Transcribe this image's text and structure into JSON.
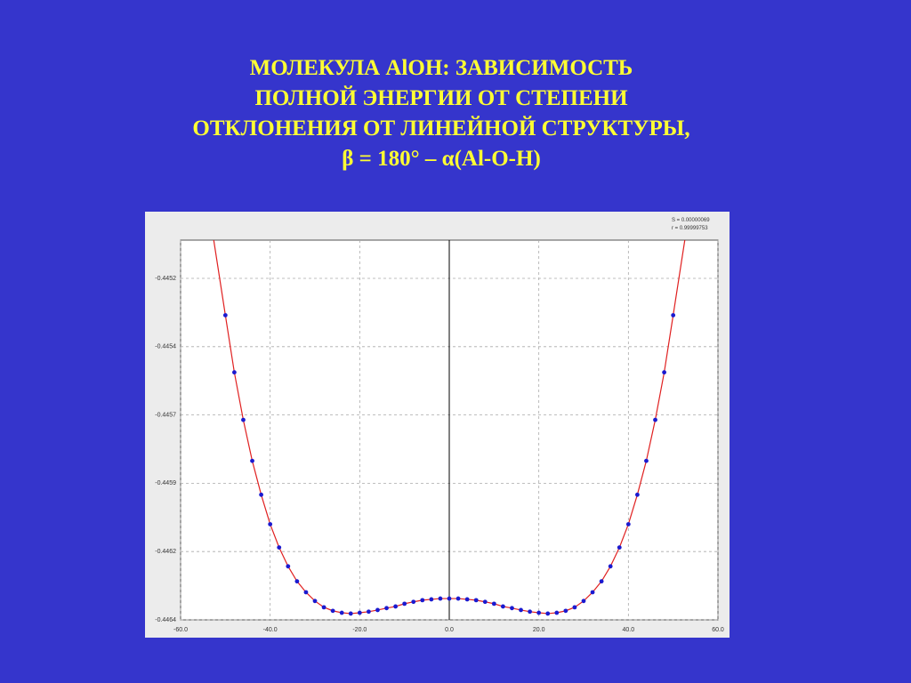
{
  "chart_data": {
    "type": "scatter",
    "title_lines": [
      "МОЛЕКУЛА AlOH: ЗАВИСИМОСТЬ",
      "ПОЛНОЙ ЭНЕРГИИ ОТ СТЕПЕНИ",
      "ОТКЛОНЕНИЯ ОТ ЛИНЕЙНОЙ СТРУКТУРЫ,",
      "β = 180° – α(Al-O-H)"
    ],
    "annotations": [
      "S = 0.00000069",
      "r = 0.99999753"
    ],
    "xlim": [
      -60,
      60
    ],
    "xticks": [
      {
        "value": -60,
        "label": "-60.0"
      },
      {
        "value": -40,
        "label": "-40.0"
      },
      {
        "value": -20,
        "label": "-20.0"
      },
      {
        "value": 0,
        "label": "0.0"
      },
      {
        "value": 20,
        "label": "20.0"
      },
      {
        "value": 40,
        "label": "40.0"
      },
      {
        "value": 60,
        "label": "60.0"
      }
    ],
    "ylim": [
      -0.4464,
      -0.44501
    ],
    "yticks": [
      {
        "value": -0.44515,
        "label": "-0.4452"
      },
      {
        "value": -0.4454,
        "label": "-0.4454"
      },
      {
        "value": -0.44565,
        "label": "-0.4457"
      },
      {
        "value": -0.4459,
        "label": "-0.4459"
      },
      {
        "value": -0.44615,
        "label": "-0.4462"
      },
      {
        "value": -0.4464,
        "label": "-0.4464"
      }
    ],
    "grid": true,
    "series": [
      {
        "color": "#1a1ad0",
        "marker": "circle",
        "x": [
          -50,
          -48,
          -46,
          -44,
          -42,
          -40,
          -38,
          -36,
          -34,
          -32,
          -30,
          -28,
          -26,
          -24,
          -22,
          -20,
          -18,
          -16,
          -14,
          -12,
          -10,
          -8,
          -6,
          -4,
          -2,
          0,
          2,
          4,
          6,
          8,
          10,
          12,
          14,
          16,
          18,
          20,
          22,
          24,
          26,
          28,
          30,
          32,
          34,
          36,
          38,
          40,
          42,
          44,
          46,
          48,
          50
        ],
        "values": [
          -0.445285,
          -0.445494,
          -0.445668,
          -0.445818,
          -0.445942,
          -0.44605,
          -0.446135,
          -0.446204,
          -0.446259,
          -0.446299,
          -0.446331,
          -0.446354,
          -0.446367,
          -0.446374,
          -0.446377,
          -0.446374,
          -0.44637,
          -0.446364,
          -0.446357,
          -0.446351,
          -0.446341,
          -0.446334,
          -0.446328,
          -0.446325,
          -0.446322,
          -0.446322,
          -0.446322,
          -0.446325,
          -0.446328,
          -0.446334,
          -0.446341,
          -0.446351,
          -0.446357,
          -0.446364,
          -0.44637,
          -0.446374,
          -0.446377,
          -0.446374,
          -0.446367,
          -0.446354,
          -0.446331,
          -0.446299,
          -0.446259,
          -0.446204,
          -0.446135,
          -0.44605,
          -0.445942,
          -0.445818,
          -0.445668,
          -0.445494,
          -0.445285
        ]
      },
      {
        "color": "#e02020",
        "line": true,
        "x": [
          -52.6,
          -50,
          -48,
          -46,
          -44,
          -42,
          -40,
          -38,
          -36,
          -34,
          -32,
          -30,
          -28,
          -26,
          -24,
          -22,
          -20,
          -18,
          -16,
          -14,
          -12,
          -10,
          -8,
          -6,
          -4,
          -2,
          0,
          2,
          4,
          6,
          8,
          10,
          12,
          14,
          16,
          18,
          20,
          22,
          24,
          26,
          28,
          30,
          32,
          34,
          36,
          38,
          40,
          42,
          44,
          46,
          48,
          50,
          52.6
        ],
        "values": [
          -0.44501,
          -0.445285,
          -0.445494,
          -0.445668,
          -0.445818,
          -0.445942,
          -0.44605,
          -0.446135,
          -0.446204,
          -0.446259,
          -0.446299,
          -0.446331,
          -0.446354,
          -0.446367,
          -0.446374,
          -0.446377,
          -0.446374,
          -0.44637,
          -0.446364,
          -0.446357,
          -0.446351,
          -0.446341,
          -0.446334,
          -0.446328,
          -0.446325,
          -0.446322,
          -0.446322,
          -0.446322,
          -0.446325,
          -0.446328,
          -0.446334,
          -0.446341,
          -0.446351,
          -0.446357,
          -0.446364,
          -0.44637,
          -0.446374,
          -0.446377,
          -0.446374,
          -0.446367,
          -0.446354,
          -0.446331,
          -0.446299,
          -0.446259,
          -0.446204,
          -0.446135,
          -0.44605,
          -0.445942,
          -0.445818,
          -0.445668,
          -0.445494,
          -0.445285,
          -0.44501
        ]
      }
    ]
  }
}
